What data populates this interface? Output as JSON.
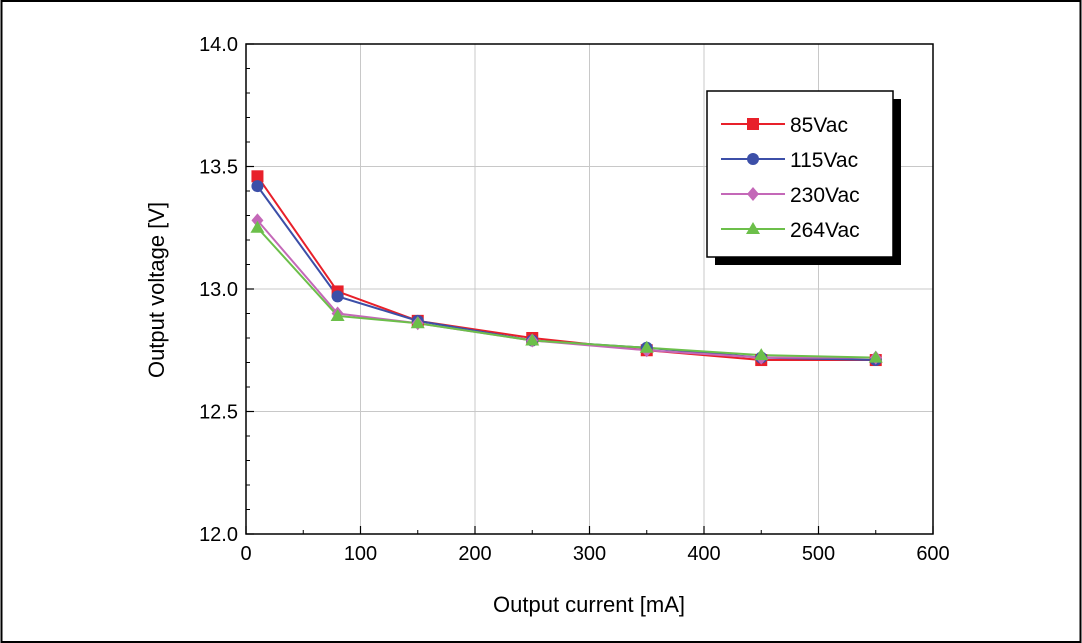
{
  "caption_fragment": "",
  "chart_data": {
    "type": "line",
    "xlabel": "Output current [mA]",
    "ylabel": "Output voltage [V]",
    "xlim": [
      0,
      600
    ],
    "ylim": [
      12.0,
      14.0
    ],
    "xticks": [
      "0",
      "100",
      "200",
      "300",
      "400",
      "500",
      "600"
    ],
    "yticks": [
      "12.0",
      "12.5",
      "13.0",
      "13.5",
      "14.0"
    ],
    "grid": true,
    "legend_position": "top-right",
    "x": [
      10,
      80,
      150,
      250,
      350,
      450,
      550
    ],
    "series": [
      {
        "name": "85Vac",
        "color": "#e8202a",
        "marker": "square",
        "values": [
          13.46,
          12.99,
          12.87,
          12.8,
          12.75,
          12.71,
          12.71
        ]
      },
      {
        "name": "115Vac",
        "color": "#3c4fa8",
        "marker": "circle",
        "values": [
          13.42,
          12.97,
          12.87,
          12.79,
          12.76,
          12.72,
          12.71
        ]
      },
      {
        "name": "230Vac",
        "color": "#c468b8",
        "marker": "diamond",
        "values": [
          13.28,
          12.9,
          12.86,
          12.79,
          12.75,
          12.72,
          12.72
        ]
      },
      {
        "name": "264Vac",
        "color": "#6cbf4a",
        "marker": "triangle",
        "values": [
          13.25,
          12.89,
          12.86,
          12.79,
          12.76,
          12.73,
          12.72
        ]
      }
    ]
  }
}
